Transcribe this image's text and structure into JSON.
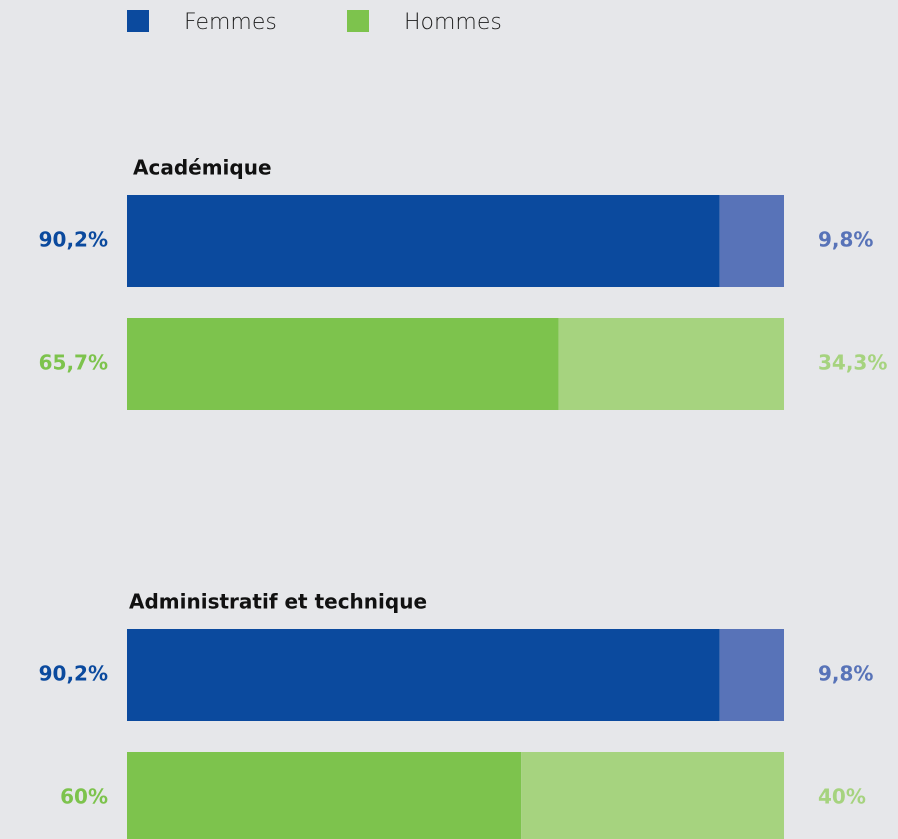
{
  "legend": [
    {
      "name": "Femmes",
      "color": "#0b4a9e"
    },
    {
      "name": "Hommes",
      "color": "#7dc34d"
    }
  ],
  "chart_data": [
    {
      "type": "bar",
      "title": "Académique",
      "xlim": [
        0,
        100
      ],
      "series": [
        {
          "values": [
            90.2,
            9.8
          ],
          "value_labels": [
            "90,2%",
            "9,8%"
          ],
          "colors": [
            "#0b4a9e",
            "#5873b8"
          ]
        },
        {
          "values": [
            65.7,
            34.3
          ],
          "value_labels": [
            "65,7%",
            "34,3%"
          ],
          "colors": [
            "#7dc34d",
            "#a6d37f"
          ]
        }
      ]
    },
    {
      "type": "bar",
      "title": "Administratif et technique",
      "xlim": [
        0,
        100
      ],
      "series": [
        {
          "values": [
            90.2,
            9.8
          ],
          "value_labels": [
            "90,2%",
            "9,8%"
          ],
          "colors": [
            "#0b4a9e",
            "#5873b8"
          ]
        },
        {
          "values": [
            60,
            40
          ],
          "value_labels": [
            "60%",
            "40%"
          ],
          "colors": [
            "#7dc34d",
            "#a6d37f"
          ]
        }
      ]
    }
  ]
}
